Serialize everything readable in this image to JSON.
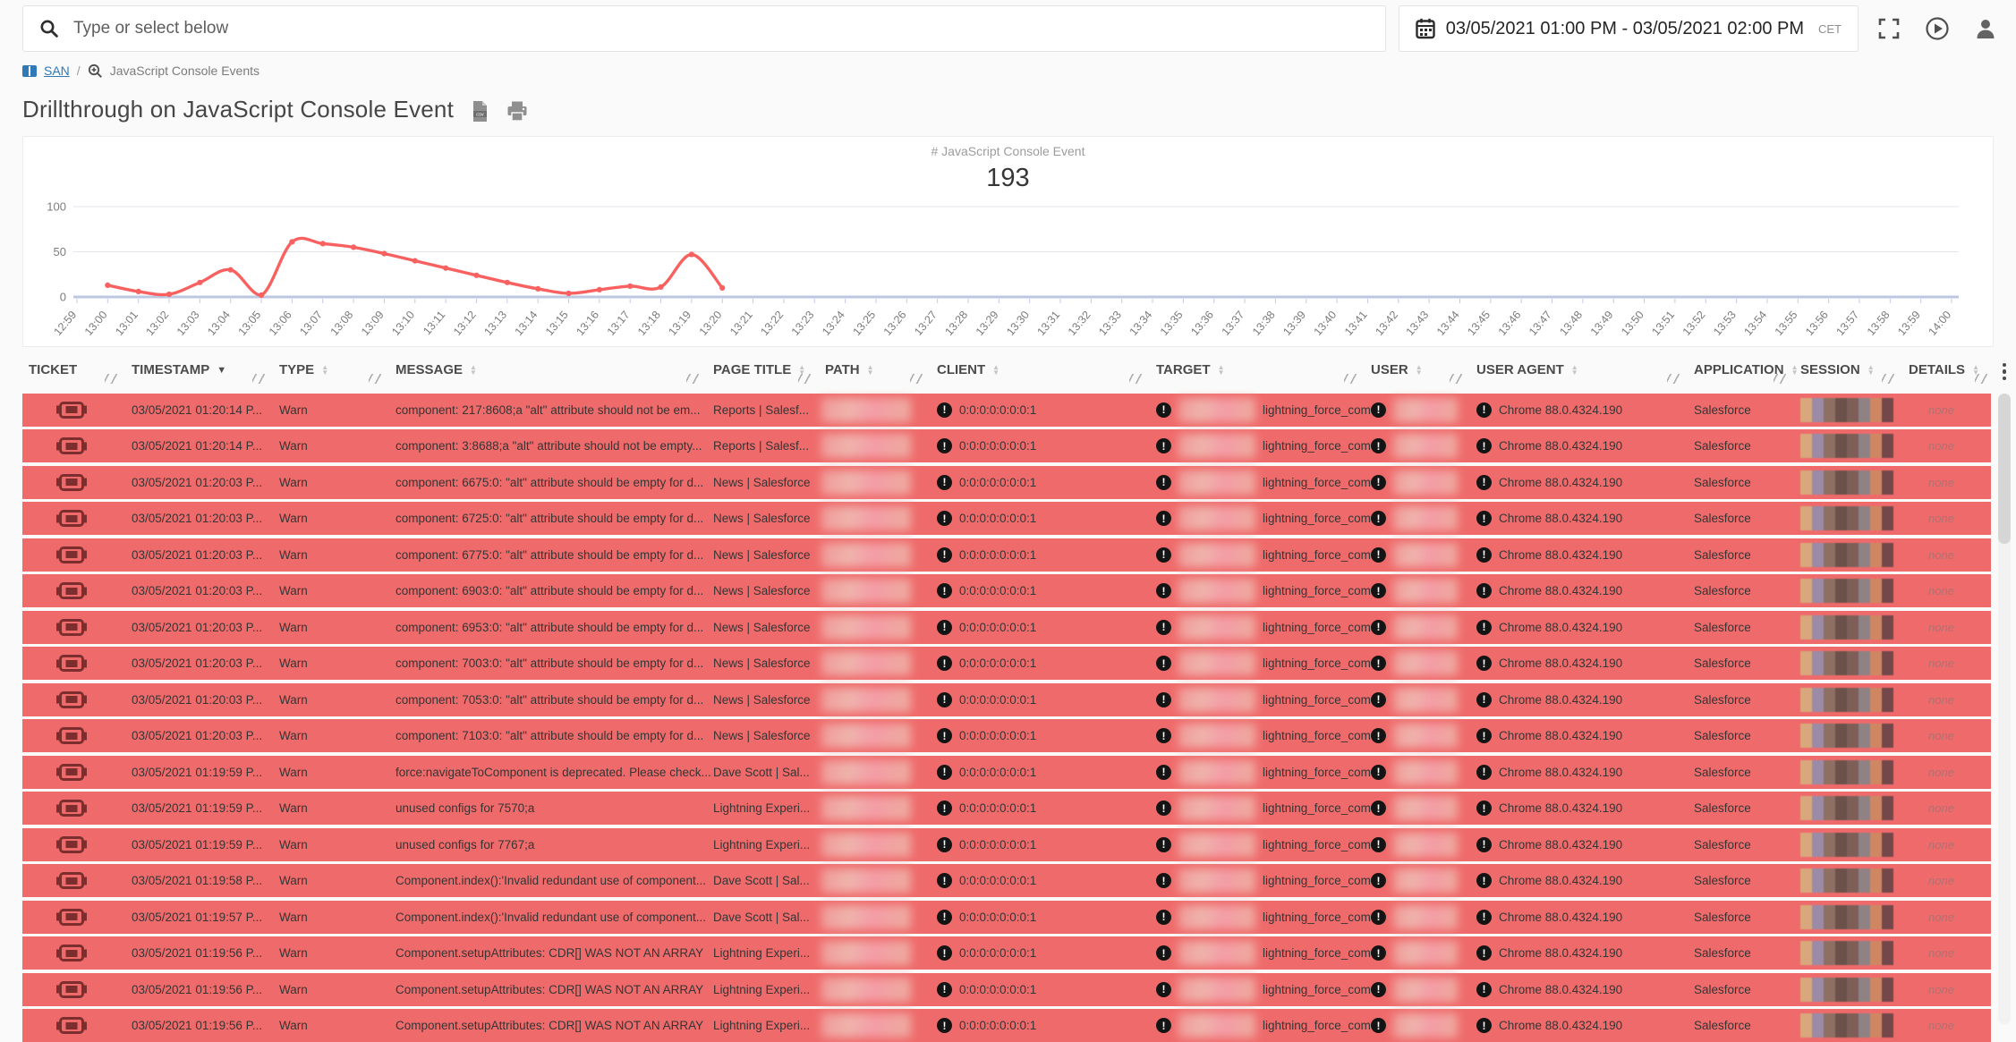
{
  "topbar": {
    "search_placeholder": "Type or select below",
    "date_range": "03/05/2021 01:00 PM - 03/05/2021 02:00 PM",
    "timezone": "CET"
  },
  "breadcrumb": {
    "root": "SAN",
    "separator": "/",
    "current": "JavaScript Console Events"
  },
  "page": {
    "title": "Drillthrough on JavaScript Console Event"
  },
  "metric": {
    "label": "# JavaScript Console Event",
    "value": "193"
  },
  "chart_data": {
    "type": "line",
    "title": "# JavaScript Console Event",
    "x": [
      "12:59",
      "13:00",
      "13:01",
      "13:02",
      "13:03",
      "13:04",
      "13:05",
      "13:06",
      "13:07",
      "13:08",
      "13:09",
      "13:10",
      "13:11",
      "13:12",
      "13:13",
      "13:14",
      "13:15",
      "13:16",
      "13:17",
      "13:18",
      "13:19",
      "13:20",
      "13:21",
      "13:22",
      "13:23",
      "13:24",
      "13:25",
      "13:26",
      "13:27",
      "13:28",
      "13:29",
      "13:30",
      "13:31",
      "13:32",
      "13:33",
      "13:34",
      "13:35",
      "13:36",
      "13:37",
      "13:38",
      "13:39",
      "13:40",
      "13:41",
      "13:42",
      "13:43",
      "13:44",
      "13:45",
      "13:46",
      "13:47",
      "13:48",
      "13:49",
      "13:50",
      "13:51",
      "13:52",
      "13:53",
      "13:54",
      "13:55",
      "13:56",
      "13:57",
      "13:58",
      "13:59",
      "14:00"
    ],
    "series": [
      {
        "name": "# JavaScript Console Event",
        "x_start_index": 1,
        "values": [
          13,
          6,
          3,
          16,
          30,
          2,
          61,
          59,
          55,
          48,
          40,
          32,
          24,
          16,
          9,
          4,
          8,
          12,
          11,
          47,
          10
        ]
      }
    ],
    "ylim": [
      0,
      100
    ],
    "yticks": [
      0,
      50,
      100
    ],
    "line_color": "#f8615f",
    "grid": true,
    "legend": "none"
  },
  "table": {
    "columns": [
      {
        "label": "TICKET",
        "sortable": false
      },
      {
        "label": "TIMESTAMP",
        "sortable": true,
        "sorted": "desc"
      },
      {
        "label": "TYPE",
        "sortable": true
      },
      {
        "label": "MESSAGE",
        "sortable": true
      },
      {
        "label": "PAGE TITLE",
        "sortable": true
      },
      {
        "label": "PATH",
        "sortable": true
      },
      {
        "label": "CLIENT",
        "sortable": true
      },
      {
        "label": "TARGET",
        "sortable": true
      },
      {
        "label": "USER",
        "sortable": true
      },
      {
        "label": "USER AGENT",
        "sortable": true
      },
      {
        "label": "APPLICATION",
        "sortable": true
      },
      {
        "label": "SESSION",
        "sortable": true
      },
      {
        "label": "DETAILS",
        "sortable": true
      }
    ],
    "shared": {
      "client": "0:0:0:0:0:0:0:1",
      "target_domain": "lightning_force_com",
      "user_agent": "Chrome 88.0.4324.190",
      "application": "Salesforce",
      "details": "none"
    },
    "rows": [
      {
        "timestamp": "03/05/2021 01:20:14 P...",
        "type": "Warn",
        "message": "component: 217:8608;a \"alt\" attribute should not be em...",
        "page_title": "Reports | Salesf..."
      },
      {
        "timestamp": "03/05/2021 01:20:14 P...",
        "type": "Warn",
        "message": "component: 3:8688;a \"alt\" attribute should not be empty...",
        "page_title": "Reports | Salesf..."
      },
      {
        "timestamp": "03/05/2021 01:20:03 P...",
        "type": "Warn",
        "message": "component: 6675:0: \"alt\" attribute should be empty for d...",
        "page_title": "News | Salesforce"
      },
      {
        "timestamp": "03/05/2021 01:20:03 P...",
        "type": "Warn",
        "message": "component: 6725:0: \"alt\" attribute should be empty for d...",
        "page_title": "News | Salesforce"
      },
      {
        "timestamp": "03/05/2021 01:20:03 P...",
        "type": "Warn",
        "message": "component: 6775:0: \"alt\" attribute should be empty for d...",
        "page_title": "News | Salesforce"
      },
      {
        "timestamp": "03/05/2021 01:20:03 P...",
        "type": "Warn",
        "message": "component: 6903:0: \"alt\" attribute should be empty for d...",
        "page_title": "News | Salesforce"
      },
      {
        "timestamp": "03/05/2021 01:20:03 P...",
        "type": "Warn",
        "message": "component: 6953:0: \"alt\" attribute should be empty for d...",
        "page_title": "News | Salesforce"
      },
      {
        "timestamp": "03/05/2021 01:20:03 P...",
        "type": "Warn",
        "message": "component: 7003:0: \"alt\" attribute should be empty for d...",
        "page_title": "News | Salesforce"
      },
      {
        "timestamp": "03/05/2021 01:20:03 P...",
        "type": "Warn",
        "message": "component: 7053:0: \"alt\" attribute should be empty for d...",
        "page_title": "News | Salesforce"
      },
      {
        "timestamp": "03/05/2021 01:20:03 P...",
        "type": "Warn",
        "message": "component: 7103:0: \"alt\" attribute should be empty for d...",
        "page_title": "News | Salesforce"
      },
      {
        "timestamp": "03/05/2021 01:19:59 P...",
        "type": "Warn",
        "message": "force:navigateToComponent is deprecated. Please check...",
        "page_title": "Dave Scott | Sal..."
      },
      {
        "timestamp": "03/05/2021 01:19:59 P...",
        "type": "Warn",
        "message": "unused configs for 7570;a",
        "page_title": "Lightning Experi..."
      },
      {
        "timestamp": "03/05/2021 01:19:59 P...",
        "type": "Warn",
        "message": "unused configs for 7767;a",
        "page_title": "Lightning Experi..."
      },
      {
        "timestamp": "03/05/2021 01:19:58 P...",
        "type": "Warn",
        "message": "Component.index():'Invalid redundant use of component...",
        "page_title": "Dave Scott | Sal..."
      },
      {
        "timestamp": "03/05/2021 01:19:57 P...",
        "type": "Warn",
        "message": "Component.index():'Invalid redundant use of component...",
        "page_title": "Dave Scott | Sal..."
      },
      {
        "timestamp": "03/05/2021 01:19:56 P...",
        "type": "Warn",
        "message": "Component.setupAttributes: CDR[] WAS NOT AN ARRAY",
        "page_title": "Lightning Experi..."
      },
      {
        "timestamp": "03/05/2021 01:19:56 P...",
        "type": "Warn",
        "message": "Component.setupAttributes: CDR[] WAS NOT AN ARRAY",
        "page_title": "Lightning Experi..."
      },
      {
        "timestamp": "03/05/2021 01:19:56 P...",
        "type": "Warn",
        "message": "Component.setupAttributes: CDR[] WAS NOT AN ARRAY",
        "page_title": "Lightning Experi..."
      }
    ]
  },
  "colors": {
    "row_background": "#ef6b6b",
    "line": "#f8615f",
    "link_blue": "#2f79b8",
    "ticket_icon": "#7c2d2d",
    "session_palette": [
      "#d8a87c",
      "#9b8ba6",
      "#8d6f63",
      "#6b5149",
      "#7d5f58",
      "#8f8284",
      "#cf8763",
      "#74474a"
    ]
  }
}
